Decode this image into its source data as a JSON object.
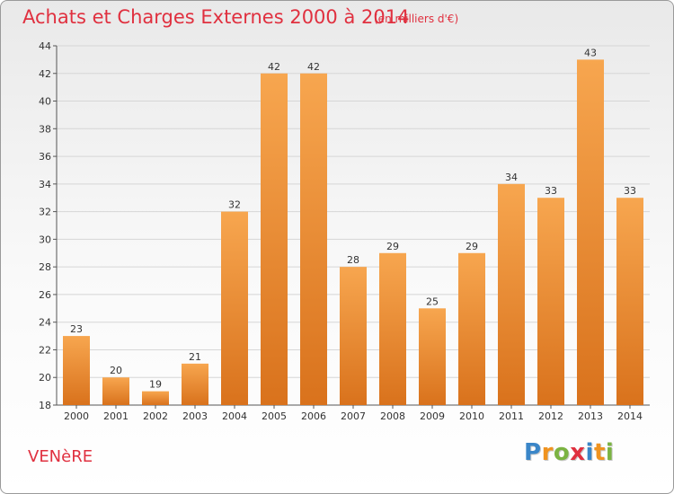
{
  "chart_data": {
    "type": "bar",
    "title": "Achats et Charges Externes 2000 à 2014",
    "subtitle": "(en milliers d'€)",
    "categories": [
      "2000",
      "2001",
      "2002",
      "2003",
      "2004",
      "2005",
      "2006",
      "2007",
      "2008",
      "2009",
      "2010",
      "2011",
      "2012",
      "2013",
      "2014"
    ],
    "values": [
      23,
      20,
      19,
      21,
      32,
      42,
      42,
      28,
      29,
      25,
      29,
      34,
      33,
      43,
      33
    ],
    "ylim": [
      18,
      44
    ],
    "yticks": [
      18,
      20,
      22,
      24,
      26,
      28,
      30,
      32,
      34,
      36,
      38,
      40,
      42,
      44
    ],
    "grid": "horizontal",
    "colors": {
      "bar_light": "#f7a64f",
      "bar_dark": "#d9721c",
      "title": "#e0303f",
      "grid": "#d6d6d6"
    }
  },
  "footer": {
    "commune": "VENèRE",
    "logo_text": "Proxiti",
    "logo_letters": [
      "P",
      "r",
      "o",
      "x",
      "i",
      "t",
      "i"
    ]
  }
}
